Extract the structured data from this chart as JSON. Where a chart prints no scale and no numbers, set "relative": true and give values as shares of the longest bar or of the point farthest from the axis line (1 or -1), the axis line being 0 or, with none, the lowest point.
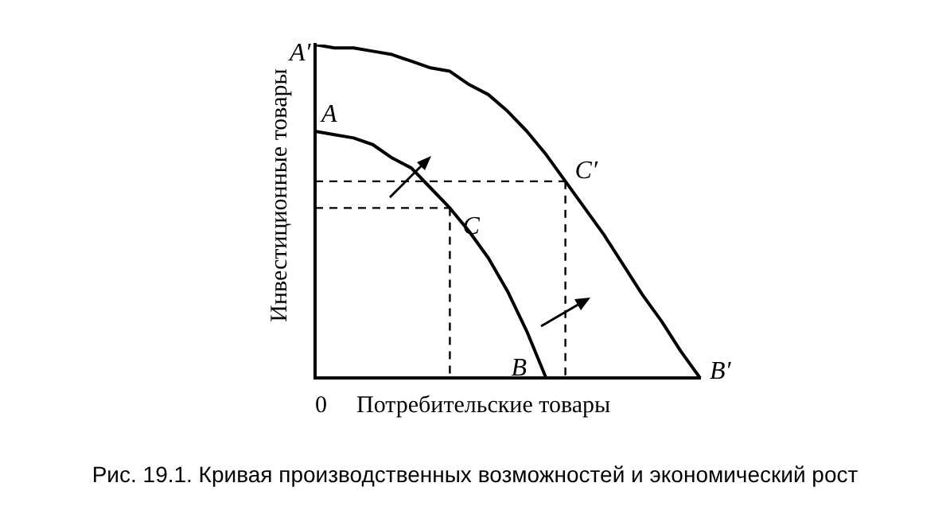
{
  "chart_data": {
    "type": "line",
    "relative": true,
    "xlabel": "Потребительские товары",
    "ylabel": "Инвестиционные товары",
    "grid": false,
    "legend": false,
    "marker": "none",
    "categories": [
      null,
      null,
      null,
      null,
      null,
      null,
      null,
      null,
      null,
      null,
      null,
      null,
      null,
      null,
      null,
      null,
      null,
      null,
      null,
      null,
      null
    ],
    "series": [
      {
        "color": "#000000",
        "values": [
          1,
          0.99,
          0.99,
          0.98,
          0.97,
          0.95,
          0.93,
          0.92,
          0.88,
          0.85,
          0.8,
          0.74,
          0.67,
          0.59,
          0.51,
          0.43,
          0.34,
          0.25,
          0.17,
          0.08,
          0
        ]
      },
      {
        "color": "#000000",
        "values": [
          0.74,
          0.73,
          0.72,
          0.7,
          0.66,
          0.63,
          0.57,
          0.51,
          0.44,
          0.36,
          0.26,
          0.14,
          0,
          null,
          null,
          null,
          null,
          null,
          null,
          null,
          null
        ]
      },
      {
        "color": "#000000",
        "line_style": "dashed",
        "values": [
          0.51,
          0.51,
          0.51,
          0.51,
          0.51,
          0.51,
          0.51,
          0.51,
          null,
          null,
          null,
          null,
          null,
          null,
          null,
          null,
          null,
          null,
          null,
          null,
          null
        ]
      },
      {
        "color": "#000000",
        "line_style": "dashed",
        "values": [
          0.59,
          0.59,
          0.59,
          0.59,
          0.59,
          0.59,
          0.59,
          0.59,
          0.59,
          0.59,
          0.59,
          0.59,
          0.59,
          0.59,
          null,
          null,
          null,
          null,
          null,
          null,
          null
        ]
      }
    ],
    "annotations": [
      "A′",
      "A",
      "C",
      "C′",
      "B",
      "B′",
      "0",
      "Рис. 19.1. Кривая производственных возможностей и экономический рост"
    ]
  }
}
